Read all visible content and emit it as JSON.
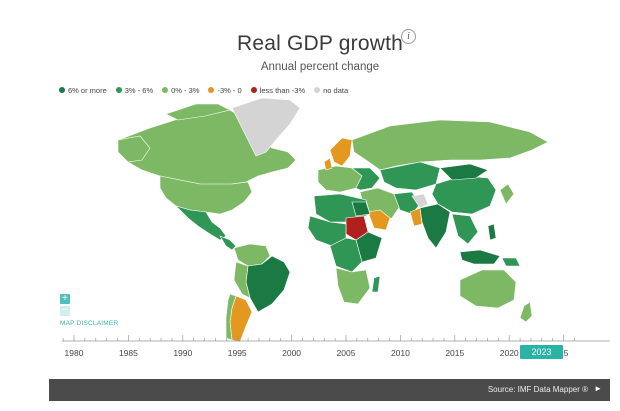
{
  "header": {
    "title": "Real GDP growth",
    "info_symbol": "i",
    "subtitle": "Annual percent change"
  },
  "legend": [
    {
      "label": "6% or more",
      "color": "#1b7a44"
    },
    {
      "label": "3% - 6%",
      "color": "#2f9656"
    },
    {
      "label": "0% - 3%",
      "color": "#7db965"
    },
    {
      "label": "-3% - 0",
      "color": "#e3981f"
    },
    {
      "label": "less than -3%",
      "color": "#b1201c"
    },
    {
      "label": "no data",
      "color": "#d4d4d4"
    }
  ],
  "map_controls": {
    "zoom_in": "+",
    "zoom_out": "−",
    "disclaimer": "MAP DISCLAIMER"
  },
  "timeline": {
    "years": [
      "1980",
      "1985",
      "1990",
      "1995",
      "2000",
      "2005",
      "2010",
      "2015",
      "2020",
      "25"
    ],
    "selected_year": "2023"
  },
  "footer": {
    "source": "Source: IMF Data Mapper ®",
    "arrow": "►"
  }
}
